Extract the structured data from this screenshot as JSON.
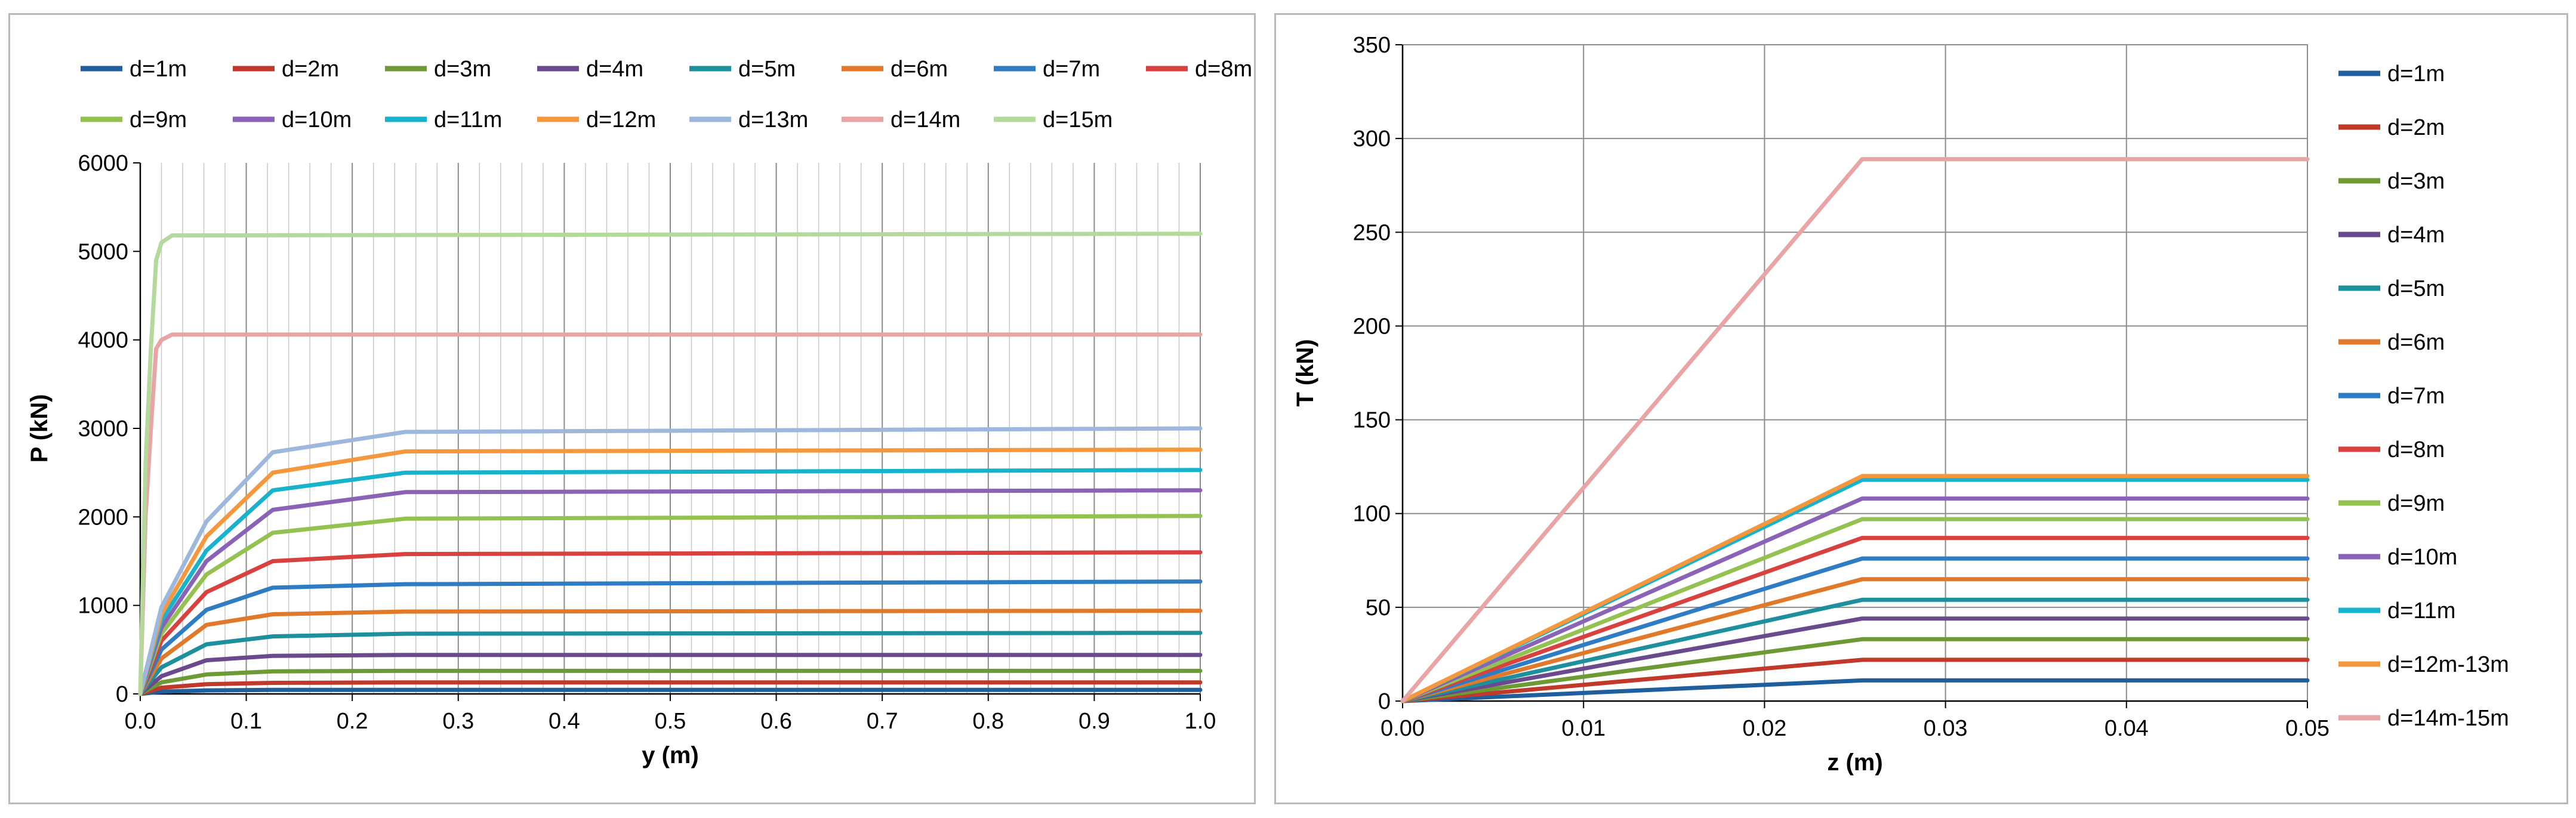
{
  "chart_data": [
    {
      "type": "line",
      "xlabel": "y (m)",
      "ylabel": "P (kN)",
      "xlim": [
        0.0,
        1.0
      ],
      "ylim": [
        0,
        6000
      ],
      "x_ticks": [
        "0.0",
        "0.1",
        "0.2",
        "0.3",
        "0.4",
        "0.5",
        "0.6",
        "0.7",
        "0.8",
        "0.9",
        "1.0"
      ],
      "y_ticks": [
        "0",
        "1000",
        "2000",
        "3000",
        "4000",
        "5000",
        "6000"
      ],
      "grid": "vertical",
      "legend_position": "top",
      "series": [
        {
          "name": "d=1m",
          "color": "#1f5f9e",
          "x": [
            0,
            0.02,
            0.0625,
            0.125,
            0.25,
            1.0
          ],
          "values": [
            0,
            25,
            40,
            45,
            45,
            45
          ]
        },
        {
          "name": "d=2m",
          "color": "#c0392b",
          "x": [
            0,
            0.02,
            0.0625,
            0.125,
            0.25,
            1.0
          ],
          "values": [
            0,
            70,
            110,
            125,
            130,
            130
          ]
        },
        {
          "name": "d=3m",
          "color": "#6e9a35",
          "x": [
            0,
            0.02,
            0.0625,
            0.125,
            0.25,
            1.0
          ],
          "values": [
            0,
            130,
            220,
            255,
            260,
            260
          ]
        },
        {
          "name": "d=4m",
          "color": "#6a4a8c",
          "x": [
            0,
            0.02,
            0.0625,
            0.125,
            0.25,
            1.0
          ],
          "values": [
            0,
            200,
            380,
            430,
            440,
            440
          ]
        },
        {
          "name": "d=5m",
          "color": "#1e8f9c",
          "x": [
            0,
            0.02,
            0.0625,
            0.125,
            0.25,
            1.0
          ],
          "values": [
            0,
            300,
            560,
            650,
            680,
            690
          ]
        },
        {
          "name": "d=6m",
          "color": "#e07a2a",
          "x": [
            0,
            0.02,
            0.0625,
            0.125,
            0.25,
            1.0
          ],
          "values": [
            0,
            400,
            780,
            900,
            930,
            940
          ]
        },
        {
          "name": "d=7m",
          "color": "#2e7cc4",
          "x": [
            0,
            0.02,
            0.0625,
            0.125,
            0.25,
            1.0
          ],
          "values": [
            0,
            500,
            950,
            1200,
            1240,
            1270
          ]
        },
        {
          "name": "d=8m",
          "color": "#d9413f",
          "x": [
            0,
            0.02,
            0.0625,
            0.125,
            0.25,
            1.0
          ],
          "values": [
            0,
            600,
            1150,
            1500,
            1580,
            1600
          ]
        },
        {
          "name": "d=9m",
          "color": "#93c250",
          "x": [
            0,
            0.02,
            0.0625,
            0.125,
            0.25,
            1.0
          ],
          "values": [
            0,
            680,
            1350,
            1820,
            1980,
            2010
          ]
        },
        {
          "name": "d=10m",
          "color": "#8a63b6",
          "x": [
            0,
            0.02,
            0.0625,
            0.125,
            0.25,
            1.0
          ],
          "values": [
            0,
            750,
            1500,
            2080,
            2280,
            2300
          ]
        },
        {
          "name": "d=11m",
          "color": "#17b3cc",
          "x": [
            0,
            0.02,
            0.0625,
            0.125,
            0.25,
            1.0
          ],
          "values": [
            0,
            830,
            1620,
            2300,
            2500,
            2530
          ]
        },
        {
          "name": "d=12m",
          "color": "#f5973c",
          "x": [
            0,
            0.02,
            0.0625,
            0.125,
            0.25,
            1.0
          ],
          "values": [
            0,
            900,
            1780,
            2500,
            2740,
            2760
          ]
        },
        {
          "name": "d=13m",
          "color": "#9db8dc",
          "x": [
            0,
            0.02,
            0.0625,
            0.125,
            0.25,
            1.0
          ],
          "values": [
            0,
            980,
            1950,
            2730,
            2960,
            3000
          ]
        },
        {
          "name": "d=14m",
          "color": "#e9a4a6",
          "x": [
            0,
            0.005,
            0.01,
            0.015,
            0.02,
            0.03,
            1.0
          ],
          "values": [
            0,
            2000,
            3000,
            3900,
            4000,
            4060,
            4060
          ]
        },
        {
          "name": "d=15m",
          "color": "#b5d99c",
          "x": [
            0,
            0.005,
            0.01,
            0.015,
            0.02,
            0.03,
            1.0
          ],
          "values": [
            0,
            2600,
            3900,
            4900,
            5100,
            5180,
            5200
          ]
        }
      ]
    },
    {
      "type": "line",
      "xlabel": "z (m)",
      "ylabel": "T (kN)",
      "xlim": [
        0.0,
        0.05
      ],
      "ylim": [
        0,
        350
      ],
      "x_ticks": [
        "0.00",
        "0.01",
        "0.02",
        "0.03",
        "0.04",
        "0.05"
      ],
      "y_ticks": [
        "0",
        "50",
        "100",
        "150",
        "200",
        "250",
        "300",
        "350"
      ],
      "grid": "both",
      "legend_position": "right",
      "series": [
        {
          "name": "d=1m",
          "color": "#1f5f9e",
          "x": [
            0,
            0.0254,
            0.05
          ],
          "values": [
            0,
            11,
            11
          ]
        },
        {
          "name": "d=2m",
          "color": "#c0392b",
          "x": [
            0,
            0.0254,
            0.05
          ],
          "values": [
            0,
            22,
            22
          ]
        },
        {
          "name": "d=3m",
          "color": "#6e9a35",
          "x": [
            0,
            0.0254,
            0.05
          ],
          "values": [
            0,
            33,
            33
          ]
        },
        {
          "name": "d=4m",
          "color": "#6a4a8c",
          "x": [
            0,
            0.0254,
            0.05
          ],
          "values": [
            0,
            44,
            44
          ]
        },
        {
          "name": "d=5m",
          "color": "#1e8f9c",
          "x": [
            0,
            0.0254,
            0.05
          ],
          "values": [
            0,
            54,
            54
          ]
        },
        {
          "name": "d=6m",
          "color": "#e07a2a",
          "x": [
            0,
            0.0254,
            0.05
          ],
          "values": [
            0,
            65,
            65
          ]
        },
        {
          "name": "d=7m",
          "color": "#2e7cc4",
          "x": [
            0,
            0.0254,
            0.05
          ],
          "values": [
            0,
            76,
            76
          ]
        },
        {
          "name": "d=8m",
          "color": "#d9413f",
          "x": [
            0,
            0.0254,
            0.05
          ],
          "values": [
            0,
            87,
            87
          ]
        },
        {
          "name": "d=9m",
          "color": "#93c250",
          "x": [
            0,
            0.0254,
            0.05
          ],
          "values": [
            0,
            97,
            97
          ]
        },
        {
          "name": "d=10m",
          "color": "#8a63b6",
          "x": [
            0,
            0.0254,
            0.05
          ],
          "values": [
            0,
            108,
            108
          ]
        },
        {
          "name": "d=11m",
          "color": "#17b3cc",
          "x": [
            0,
            0.0254,
            0.05
          ],
          "values": [
            0,
            118,
            118
          ]
        },
        {
          "name": "d=12m-13m",
          "color": "#f5973c",
          "x": [
            0,
            0.0254,
            0.05
          ],
          "values": [
            0,
            120,
            120
          ]
        },
        {
          "name": "d=14m-15m",
          "color": "#e9a4a6",
          "x": [
            0,
            0.0254,
            0.05
          ],
          "values": [
            0,
            289,
            289
          ]
        }
      ]
    }
  ]
}
